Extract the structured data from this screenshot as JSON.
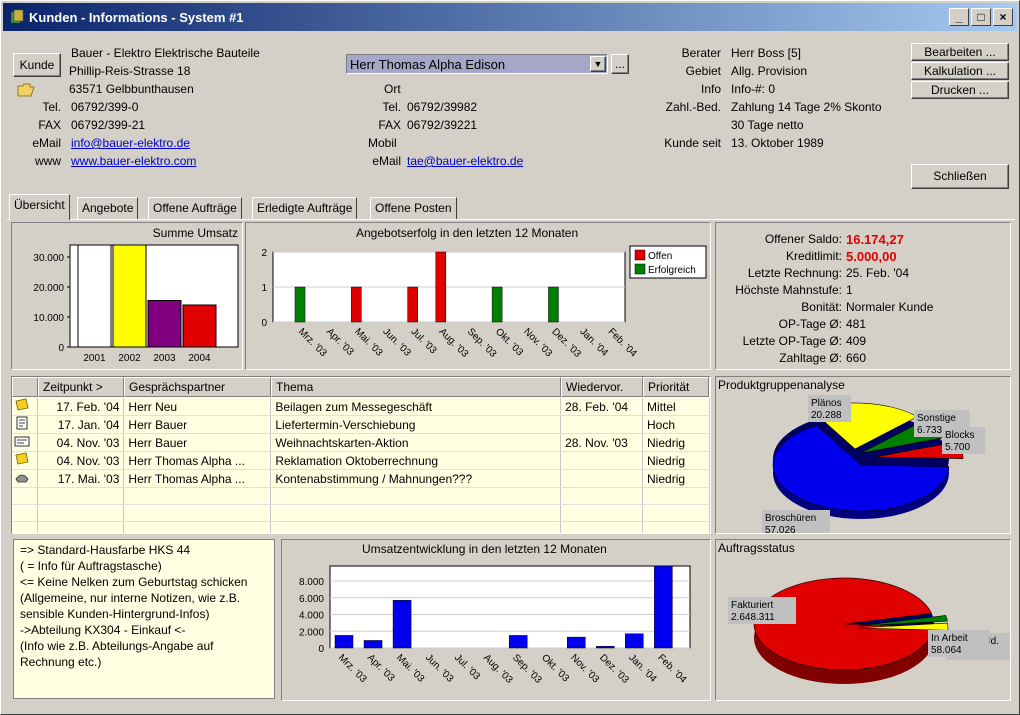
{
  "window": {
    "title": "Kunden - Informations - System #1"
  },
  "customer": {
    "button": "Kunde",
    "name": "Bauer - Elektro Elektrische Bauteile",
    "street": "Phillip-Reis-Strasse 18",
    "city": "63571 Gelbbunthausen",
    "tel_label": "Tel.",
    "tel": "06792/399-0",
    "fax_label": "FAX",
    "fax": "06792/399-21",
    "email_label": "eMail",
    "email": "info@bauer-elektro.de",
    "www_label": "www",
    "www": "www.bauer-elektro.com"
  },
  "contact": {
    "selected": "Herr Thomas Alpha Edison",
    "more_button": "...",
    "ort_label": "Ort",
    "tel_label": "Tel.",
    "tel": "06792/39982",
    "fax_label": "FAX",
    "fax": "06792/39221",
    "mobil_label": "Mobil",
    "email_label": "eMail",
    "email": "tae@bauer-elektro.de"
  },
  "info": {
    "berater_label": "Berater",
    "berater": "Herr Boss [5]",
    "gebiet_label": "Gebiet",
    "gebiet": "Allg. Provision",
    "info_label": "Info",
    "info": "Info-#: 0",
    "zahl_label": "Zahl.-Bed.",
    "zahl1": "Zahlung 14 Tage 2% Skonto",
    "zahl2": "30 Tage netto",
    "seit_label": "Kunde seit",
    "seit": "13. Oktober 1989"
  },
  "buttons": {
    "bearbeiten": "Bearbeiten ...",
    "kalkulation": "Kalkulation ...",
    "drucken": "Drucken ...",
    "schliessen": "Schließen"
  },
  "tabs": [
    "Übersicht",
    "Angebote",
    "Offene Aufträge",
    "Erledigte Aufträge",
    "Offene Posten"
  ],
  "saldo": {
    "rows": [
      {
        "label": "Offener Saldo:",
        "value": "16.174,27"
      },
      {
        "label": "Kreditlimit:",
        "value": "5.000,00"
      },
      {
        "label": "Letzte Rechnung:",
        "value": "25. Feb. '04"
      },
      {
        "label": "Höchste Mahnstufe:",
        "value": "1"
      },
      {
        "label": "Bonität:",
        "value": "Normaler Kunde"
      },
      {
        "label": "OP-Tage Ø:",
        "value": "481"
      },
      {
        "label": "Letzte OP-Tage Ø:",
        "value": "409"
      },
      {
        "label": "Zahltage Ø:",
        "value": "660"
      }
    ],
    "highlight_color": "#e00000"
  },
  "table": {
    "headers": [
      "Zeitpunkt >",
      "Gesprächspartner",
      "Thema",
      "Wiedervor.",
      "Priorität"
    ],
    "rows": [
      {
        "icon": "note-icon",
        "zeit": "17. Feb. '04",
        "partner": "Herr Neu",
        "thema": "Beilagen zum Messegeschäft",
        "wv": "28. Feb. '04",
        "prio": "Mittel"
      },
      {
        "icon": "document-icon",
        "zeit": "17. Jan. '04",
        "partner": "Herr Bauer",
        "thema": "Liefertermin-Verschiebung",
        "wv": "",
        "prio": "Hoch"
      },
      {
        "icon": "card-icon",
        "zeit": "04. Nov. '03",
        "partner": "Herr Bauer",
        "thema": "Weihnachtskarten-Aktion",
        "wv": "28. Nov. '03",
        "prio": "Niedrig"
      },
      {
        "icon": "note-icon",
        "zeit": "04. Nov. '03",
        "partner": "Herr Thomas Alpha ...",
        "thema": "Reklamation Oktoberrechnung",
        "wv": "",
        "prio": "Niedrig"
      },
      {
        "icon": "phone-icon",
        "zeit": "17. Mai. '03",
        "partner": "Herr Thomas Alpha ...",
        "thema": "Kontenabstimmung / Mahnungen???",
        "wv": "",
        "prio": "Niedrig"
      }
    ]
  },
  "notes": [
    "=> Standard-Hausfarbe HKS 44",
    "( = Info für Auftragstasche)",
    "<= Keine Nelken zum Geburtstag schicken",
    "(Allgemeine, nur interne Notizen, wie z.B.",
    "sensible Kunden-Hintergrund-Infos)",
    "->Abteilung KX304 - Einkauf <-",
    "(Info wie z.B. Abteilungs-Angabe auf",
    "Rechnung etc.)"
  ],
  "chart_data": [
    {
      "type": "bar",
      "title": "Summe Umsatz",
      "categories": [
        "2001",
        "2002",
        "2003",
        "2004"
      ],
      "values": [
        34000,
        34000,
        15500,
        14000
      ],
      "colors": [
        "#ffffff",
        "#ffff00",
        "#800080",
        "#e00000"
      ],
      "yticks": [
        "0",
        "10.000",
        "20.000",
        "30.000"
      ],
      "ylim": [
        0,
        34000
      ]
    },
    {
      "type": "bar",
      "title": "Angebotserfolg in den letzten 12 Monaten",
      "categories": [
        "Mrz. '03",
        "Apr. '03",
        "Mai. '03",
        "Jun. '03",
        "Jul. '03",
        "Aug. '03",
        "Sep. '03",
        "Okt. '03",
        "Nov. '03",
        "Dez. '03",
        "Jan. '04",
        "Feb. '04"
      ],
      "series": [
        {
          "name": "Offen",
          "color": "#e00000",
          "values": [
            0,
            0,
            1,
            0,
            1,
            2,
            0,
            0,
            0,
            0,
            0,
            0
          ]
        },
        {
          "name": "Erfolgreich",
          "color": "#008000",
          "values": [
            1,
            0,
            0,
            0,
            0,
            0,
            0,
            1,
            0,
            1,
            0,
            0
          ]
        }
      ],
      "yticks": [
        "0",
        "1",
        "2"
      ],
      "ylim": [
        0,
        2
      ]
    },
    {
      "type": "pie",
      "title": "Produktgruppenanalyse",
      "slices": [
        {
          "label": "Plänos",
          "value": "20.288",
          "color": "#ffff00"
        },
        {
          "label": "Sonstige",
          "value": "6.733",
          "color": "#008000"
        },
        {
          "label": "Blocks",
          "value": "5.700",
          "color": "#e00000"
        },
        {
          "label": "Broschüren",
          "value": "57.026",
          "color": "#0000ee"
        }
      ]
    },
    {
      "type": "bar",
      "title": "Umsatzentwicklung in den letzten 12 Monaten",
      "categories": [
        "Mrz. '03",
        "Apr. '03",
        "Mai. '03",
        "Jun. '03",
        "Jul. '03",
        "Aug. '03",
        "Sep. '03",
        "Okt. '03",
        "Nov. '03",
        "Dez. '03",
        "Jan. '04",
        "Feb. '04"
      ],
      "values": [
        1500,
        900,
        5700,
        0,
        0,
        0,
        1500,
        0,
        1300,
        200,
        1700,
        9800
      ],
      "color": "#0000ee",
      "yticks": [
        "0",
        "2.000",
        "4.000",
        "6.000",
        "8.000"
      ],
      "ylim": [
        0,
        9800
      ]
    },
    {
      "type": "pie",
      "title": "Auftragsstatus",
      "slices": [
        {
          "label": "Fakturiert",
          "value": "2.648.311",
          "color": "#e00000"
        },
        {
          "label": "Fertigmeld.",
          "value": "...59",
          "color": "#008000"
        },
        {
          "label": "In Arbeit",
          "value": "58.064",
          "color": "#ffff00"
        }
      ]
    }
  ]
}
